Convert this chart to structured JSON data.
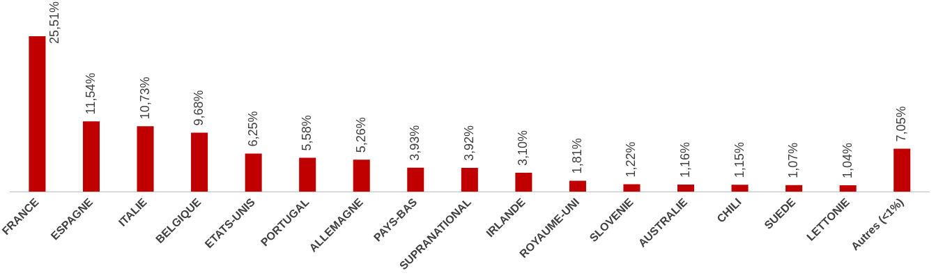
{
  "chart_data": {
    "type": "bar",
    "categories": [
      "FRANCE",
      "ESPAGNE",
      "ITALIE",
      "BELGIQUE",
      "ETATS-UNIS",
      "PORTUGAL",
      "ALLEMAGNE",
      "PAYS-BAS",
      "SUPRANATIONAL",
      "IRLANDE",
      "ROYAUME-UNI",
      "SLOVENIE",
      "AUSTRALIE",
      "CHILI",
      "SUEDE",
      "LETTONIE",
      "Autres (<1%)"
    ],
    "values": [
      25.51,
      11.54,
      10.73,
      9.68,
      6.25,
      5.58,
      5.26,
      3.93,
      3.92,
      3.1,
      1.81,
      1.22,
      1.16,
      1.15,
      1.07,
      1.04,
      7.05
    ],
    "value_labels": [
      "25,51%",
      "11,54%",
      "10,73%",
      "9,68%",
      "6,25%",
      "5,58%",
      "5,26%",
      "3,93%",
      "3,92%",
      "3,10%",
      "1,81%",
      "1,22%",
      "1,16%",
      "1,15%",
      "1,07%",
      "1,04%",
      "7,05%"
    ],
    "color": "#c00000",
    "grid": false,
    "legend": false
  }
}
